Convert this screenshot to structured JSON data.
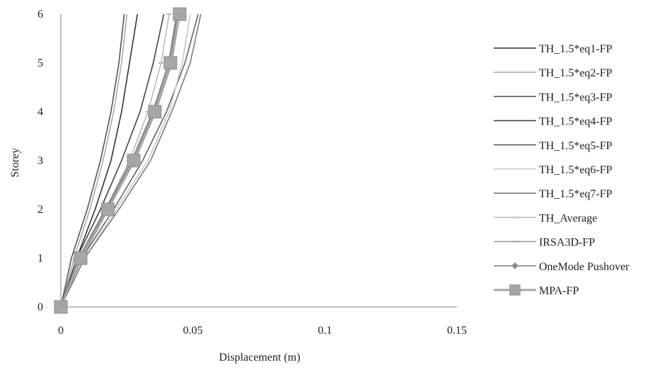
{
  "chart_data": {
    "type": "line",
    "title": "",
    "xlabel": "Displacement  (m)",
    "ylabel": "Storey",
    "xlim": [
      0,
      0.15
    ],
    "ylim": [
      0,
      6
    ],
    "x_ticks": [
      {
        "value": 0,
        "label": "0"
      },
      {
        "value": 0.05,
        "label": "0.05"
      },
      {
        "value": 0.1,
        "label": "0.1"
      },
      {
        "value": 0.15,
        "label": "0.15"
      }
    ],
    "y_ticks": [
      {
        "value": 0,
        "label": "0"
      },
      {
        "value": 1,
        "label": "1"
      },
      {
        "value": 2,
        "label": "2"
      },
      {
        "value": 3,
        "label": "3"
      },
      {
        "value": 4,
        "label": "4"
      },
      {
        "value": 5,
        "label": "5"
      },
      {
        "value": 6,
        "label": "6"
      }
    ],
    "grid": false,
    "legend_position": "right",
    "storeys": [
      0,
      1,
      2,
      3,
      4,
      5,
      6
    ],
    "series": [
      {
        "name": "TH_1.5*eq1-FP",
        "color": "#333333",
        "marker": "none",
        "x": [
          0,
          0.006,
          0.013,
          0.019,
          0.023,
          0.026,
          0.029
        ]
      },
      {
        "name": "TH_1.5*eq2-FP",
        "color": "#aaaaaa",
        "marker": "none",
        "x": [
          0,
          0.005,
          0.011,
          0.016,
          0.02,
          0.023,
          0.025
        ]
      },
      {
        "name": "TH_1.5*eq3-FP",
        "color": "#555555",
        "marker": "none",
        "x": [
          0,
          0.004,
          0.01,
          0.015,
          0.019,
          0.022,
          0.024
        ]
      },
      {
        "name": "TH_1.5*eq4-FP",
        "color": "#444444",
        "marker": "none",
        "x": [
          0,
          0.006,
          0.015,
          0.023,
          0.03,
          0.035,
          0.039
        ]
      },
      {
        "name": "TH_1.5*eq5-FP",
        "color": "#666666",
        "marker": "none",
        "x": [
          0,
          0.008,
          0.02,
          0.031,
          0.04,
          0.047,
          0.052
        ]
      },
      {
        "name": "TH_1.5*eq6-FP",
        "color": "#c8c8c8",
        "marker": "none",
        "x": [
          0,
          0.009,
          0.021,
          0.033,
          0.041,
          0.046,
          0.049
        ]
      },
      {
        "name": "TH_1.5*eq7-FP",
        "color": "#7a7a7a",
        "marker": "none",
        "x": [
          0,
          0.009,
          0.022,
          0.034,
          0.042,
          0.049,
          0.053
        ]
      },
      {
        "name": "TH_Average",
        "color": "#bbbbbb",
        "marker": "dash",
        "x": [
          0,
          0.007,
          0.017,
          0.026,
          0.033,
          0.038,
          0.041
        ]
      },
      {
        "name": "IRSA3D-FP",
        "color": "#999999",
        "marker": "dash",
        "x": [
          0,
          0.008,
          0.018,
          0.028,
          0.036,
          0.042,
          0.045
        ]
      },
      {
        "name": "OneMode Pushover",
        "color": "#888888",
        "marker": "diamond",
        "x": [
          0,
          0.007,
          0.017,
          0.027,
          0.035,
          0.041,
          0.044
        ]
      },
      {
        "name": "MPA-FP",
        "color": "#a6a6a6",
        "marker": "square",
        "x": [
          0,
          0.0075,
          0.0178,
          0.0276,
          0.0356,
          0.0415,
          0.045
        ]
      }
    ]
  }
}
